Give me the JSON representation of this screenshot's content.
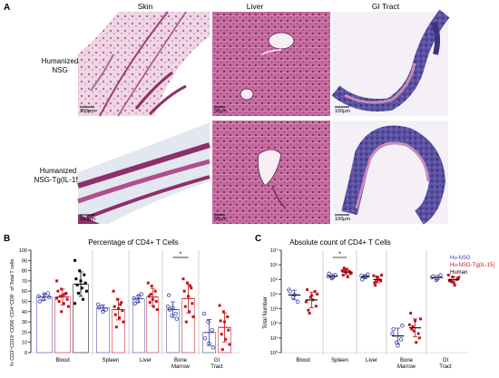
{
  "panel_a": {
    "letter": "A",
    "columns": [
      "Skin",
      "Liver",
      "GI Tract"
    ],
    "rows": [
      {
        "label_lines": [
          "Humanized",
          "NSG"
        ]
      },
      {
        "label_lines": [
          "Humanized",
          "NSG-Tg(IL-15)"
        ]
      }
    ],
    "scale_bars": [
      [
        "200μm",
        "50μm",
        "100μm"
      ],
      [
        "100μm",
        "50μm",
        "100μm"
      ]
    ],
    "tissue_colors": {
      "skin": "#d9a2c4",
      "skin_dark": "#8e2f6a",
      "liver": "#c3649a",
      "liver_dark": "#7a2c64",
      "gi": "#6a5fae",
      "gi_dark": "#3b347a",
      "gi_pink": "#c98ab8"
    }
  },
  "colors": {
    "hu_nsg": "#3b3fa6",
    "hu_nsg_tg": "#c0141c",
    "human": "#000000"
  },
  "chart_data": [
    {
      "id": "B",
      "letter": "B",
      "type": "scatter",
      "title": "Percentage of CD4+ T Cells",
      "ylabel": "% CD3⁺CD19⁻CD56⁻CD4⁺CD8⁻ of Total T cells",
      "ylim": [
        0,
        100
      ],
      "yticks": [
        "0",
        "10",
        "20",
        "30",
        "40",
        "50",
        "60",
        "70",
        "80",
        "90",
        "100"
      ],
      "categories": [
        "Blood",
        "Spleen",
        "Liver",
        "Bone Marrow",
        "GI Tract"
      ],
      "significance": [
        {
          "category": "Bone Marrow",
          "label": "*"
        }
      ],
      "series": [
        {
          "group": "hu_nsg",
          "marker": "circle",
          "points": [
            [
              55,
              52,
              58,
              50,
              57,
              54
            ],
            [
              47,
              45,
              42,
              44,
              40
            ],
            [
              53,
              50,
              57,
              48,
              55
            ],
            [
              45,
              36,
              38,
              56,
              44,
              33,
              42
            ],
            [
              38,
              30,
              22,
              14,
              9,
              5
            ]
          ]
        },
        {
          "group": "hu_nsg_tg",
          "marker": "square",
          "points": [
            [
              70,
              62,
              58,
              60,
              56,
              52,
              50,
              48,
              45,
              55,
              57,
              53,
              40
            ],
            [
              60,
              52,
              49,
              45,
              43,
              41,
              37,
              34,
              30,
              25,
              47
            ],
            [
              68,
              65,
              60,
              55,
              52,
              50,
              49,
              45,
              42,
              57
            ],
            [
              72,
              68,
              63,
              60,
              55,
              48,
              45,
              40,
              35,
              30,
              65
            ],
            [
              46,
              40,
              35,
              31,
              30,
              22,
              18,
              13,
              8,
              3
            ]
          ]
        },
        {
          "group": "human",
          "marker": "square",
          "points": [
            [
              90,
              80,
              76,
              72,
              70,
              68,
              66,
              63,
              60,
              58,
              52,
              48
            ],
            [],
            [],
            [],
            []
          ]
        }
      ]
    },
    {
      "id": "C",
      "letter": "C",
      "type": "scatter",
      "title": "Absolute count of CD4+ T Cells",
      "ylabel": "Total Number",
      "yscale": "log",
      "ylim": [
        1,
        10000000
      ],
      "yticks": [
        "10⁰",
        "10¹",
        "10²",
        "10³",
        "10⁴",
        "10⁵",
        "10⁶",
        "10⁷"
      ],
      "categories": [
        "Blood",
        "Spleen",
        "Liver",
        "Bone Marrow",
        "GI Tract"
      ],
      "legend": [
        {
          "group": "hu_nsg",
          "label": "Hu-NSG"
        },
        {
          "group": "hu_nsg_tg",
          "label": "Hu-NSG-Tg(IL-15)"
        },
        {
          "group": "human",
          "label": "Human"
        }
      ],
      "significance": [
        {
          "category": "Spleen",
          "label": "*"
        }
      ],
      "series": [
        {
          "group": "hu_nsg",
          "marker": "circle",
          "points": [
            [
              20000,
              6000,
              3000,
              15000,
              9000
            ],
            [
              160000,
              120000,
              200000,
              250000,
              140000
            ],
            [
              180000,
              140000,
              220000,
              100000,
              160000
            ],
            [
              20,
              5,
              8,
              40,
              3,
              70
            ],
            [
              140000,
              90000,
              200000,
              160000,
              110000
            ]
          ]
        },
        {
          "group": "hu_nsg_tg",
          "marker": "square",
          "points": [
            [
              3000,
              6000,
              15000,
              20000,
              8000,
              1500,
              800,
              4000,
              10000,
              500
            ],
            [
              400000,
              300000,
              350000,
              200000,
              500000,
              250000,
              600000,
              150000,
              280000,
              450000
            ],
            [
              180000,
              150000,
              90000,
              60000,
              120000,
              80000,
              40000,
              100000,
              200000,
              70000
            ],
            [
              80,
              30,
              20,
              500,
              150,
              10,
              40,
              5,
              200,
              60
            ],
            [
              200000,
              150000,
              100000,
              80000,
              60000,
              120000,
              90000,
              40000,
              140000,
              70000
            ]
          ]
        },
        {
          "group": "human",
          "marker": "square",
          "points": [
            [],
            [],
            [],
            [],
            []
          ]
        }
      ]
    }
  ]
}
